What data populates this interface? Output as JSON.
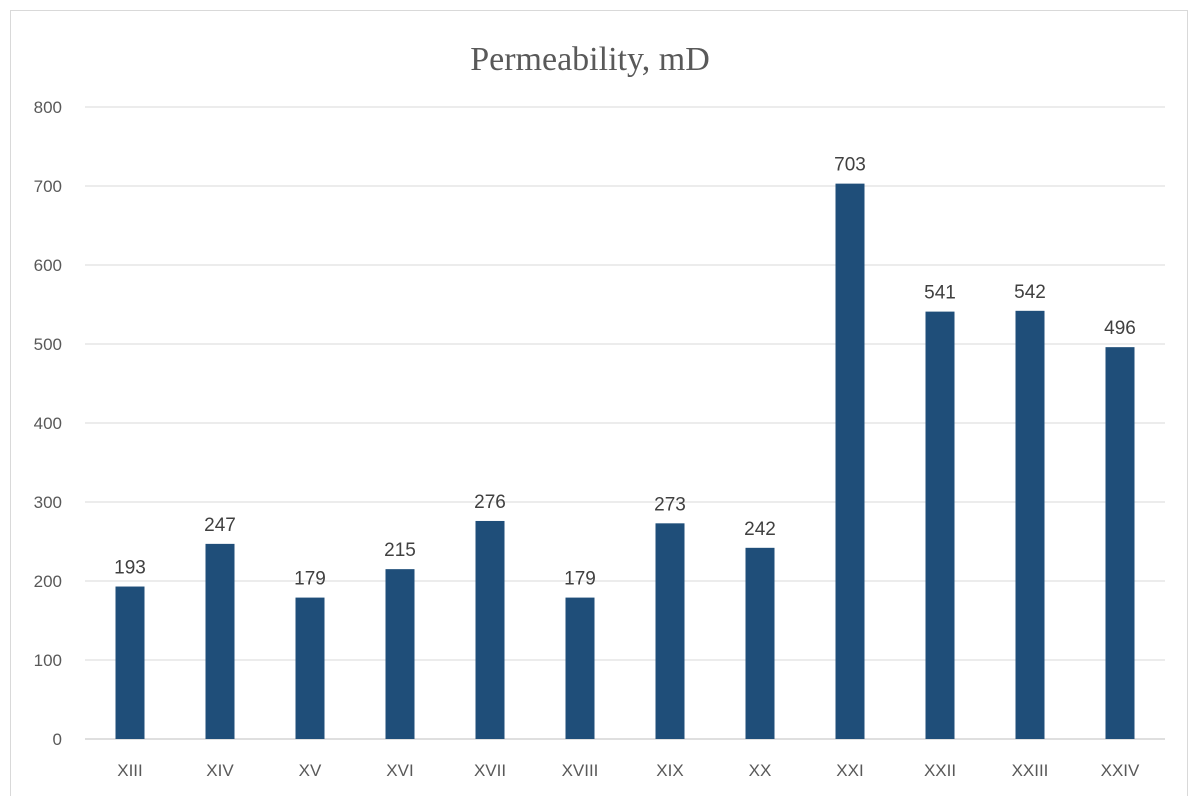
{
  "chart_data": {
    "type": "bar",
    "title": "Permeability, mD",
    "xlabel": "",
    "ylabel": "",
    "categories": [
      "XIII",
      "XIV",
      "XV",
      "XVI",
      "XVII",
      "XVIII",
      "XIX",
      "XX",
      "XXI",
      "XXII",
      "XXIII",
      "XXIV"
    ],
    "values": [
      193,
      247,
      179,
      215,
      276,
      179,
      273,
      242,
      703,
      541,
      542,
      496
    ],
    "ylim": [
      0,
      800
    ],
    "yticks": [
      0,
      100,
      200,
      300,
      400,
      500,
      600,
      700,
      800
    ],
    "grid": true,
    "legend": "none",
    "bar_color": "#1f4e79",
    "data_labels": true
  }
}
